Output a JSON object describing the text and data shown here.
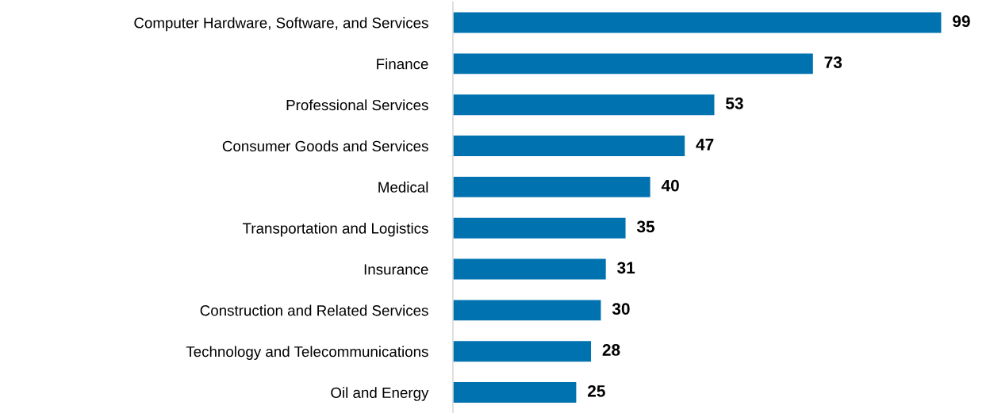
{
  "chart_data": {
    "type": "bar",
    "orientation": "horizontal",
    "categories": [
      "Computer Hardware, Software, and Services",
      "Finance",
      "Professional Services",
      "Consumer Goods and Services",
      "Medical",
      "Transportation and Logistics",
      "Insurance",
      "Construction and Related Services",
      "Technology and Telecommunications",
      "Oil and Energy"
    ],
    "values": [
      99,
      73,
      53,
      47,
      40,
      35,
      31,
      30,
      28,
      25
    ],
    "color": "#0072b0",
    "data_labels": true,
    "tick_labels": "y",
    "grid": false,
    "legend": false
  }
}
